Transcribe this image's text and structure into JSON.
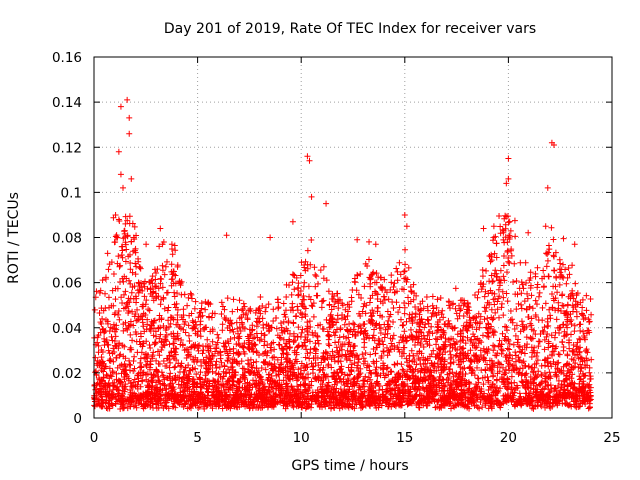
{
  "chart_data": {
    "type": "scatter",
    "title": "Day 201 of 2019, Rate Of TEC Index for receiver vars",
    "xlabel": "GPS time / hours",
    "ylabel": "ROTI / TECUs",
    "xlim": [
      0,
      25
    ],
    "ylim": [
      0,
      0.16
    ],
    "x_ticks": [
      0,
      5,
      10,
      15,
      20,
      25
    ],
    "x_tick_labels": [
      "0",
      "5",
      "10",
      "15",
      "20",
      "25"
    ],
    "y_ticks": [
      0,
      0.02,
      0.04,
      0.06,
      0.08,
      0.1,
      0.12,
      0.14,
      0.16
    ],
    "y_tick_labels": [
      "0",
      "0.02",
      "0.04",
      "0.06",
      "0.08",
      "0.1",
      "0.12",
      "0.14",
      "0.16"
    ],
    "grid": true,
    "marker": "+",
    "color": "#ff0000",
    "series": [
      {
        "name": "vars",
        "x_range": [
          0,
          24
        ],
        "typical_band": [
          0.01,
          0.04
        ],
        "notable_points": [
          {
            "x": 1.3,
            "y": 0.138
          },
          {
            "x": 1.6,
            "y": 0.141
          },
          {
            "x": 1.7,
            "y": 0.133
          },
          {
            "x": 1.7,
            "y": 0.126
          },
          {
            "x": 1.2,
            "y": 0.118
          },
          {
            "x": 1.3,
            "y": 0.108
          },
          {
            "x": 1.8,
            "y": 0.106
          },
          {
            "x": 1.4,
            "y": 0.102
          },
          {
            "x": 3.2,
            "y": 0.084
          },
          {
            "x": 6.4,
            "y": 0.081
          },
          {
            "x": 8.5,
            "y": 0.08
          },
          {
            "x": 9.6,
            "y": 0.087
          },
          {
            "x": 10.3,
            "y": 0.116
          },
          {
            "x": 10.4,
            "y": 0.114
          },
          {
            "x": 10.5,
            "y": 0.098
          },
          {
            "x": 11.2,
            "y": 0.095
          },
          {
            "x": 12.7,
            "y": 0.079
          },
          {
            "x": 13.6,
            "y": 0.077
          },
          {
            "x": 15.0,
            "y": 0.09
          },
          {
            "x": 15.1,
            "y": 0.085
          },
          {
            "x": 18.8,
            "y": 0.084
          },
          {
            "x": 19.3,
            "y": 0.085
          },
          {
            "x": 20.0,
            "y": 0.115
          },
          {
            "x": 19.9,
            "y": 0.104
          },
          {
            "x": 20.0,
            "y": 0.106
          },
          {
            "x": 21.9,
            "y": 0.102
          },
          {
            "x": 22.1,
            "y": 0.122
          },
          {
            "x": 22.2,
            "y": 0.121
          },
          {
            "x": 21.8,
            "y": 0.085
          },
          {
            "x": 23.2,
            "y": 0.077
          }
        ]
      }
    ]
  }
}
